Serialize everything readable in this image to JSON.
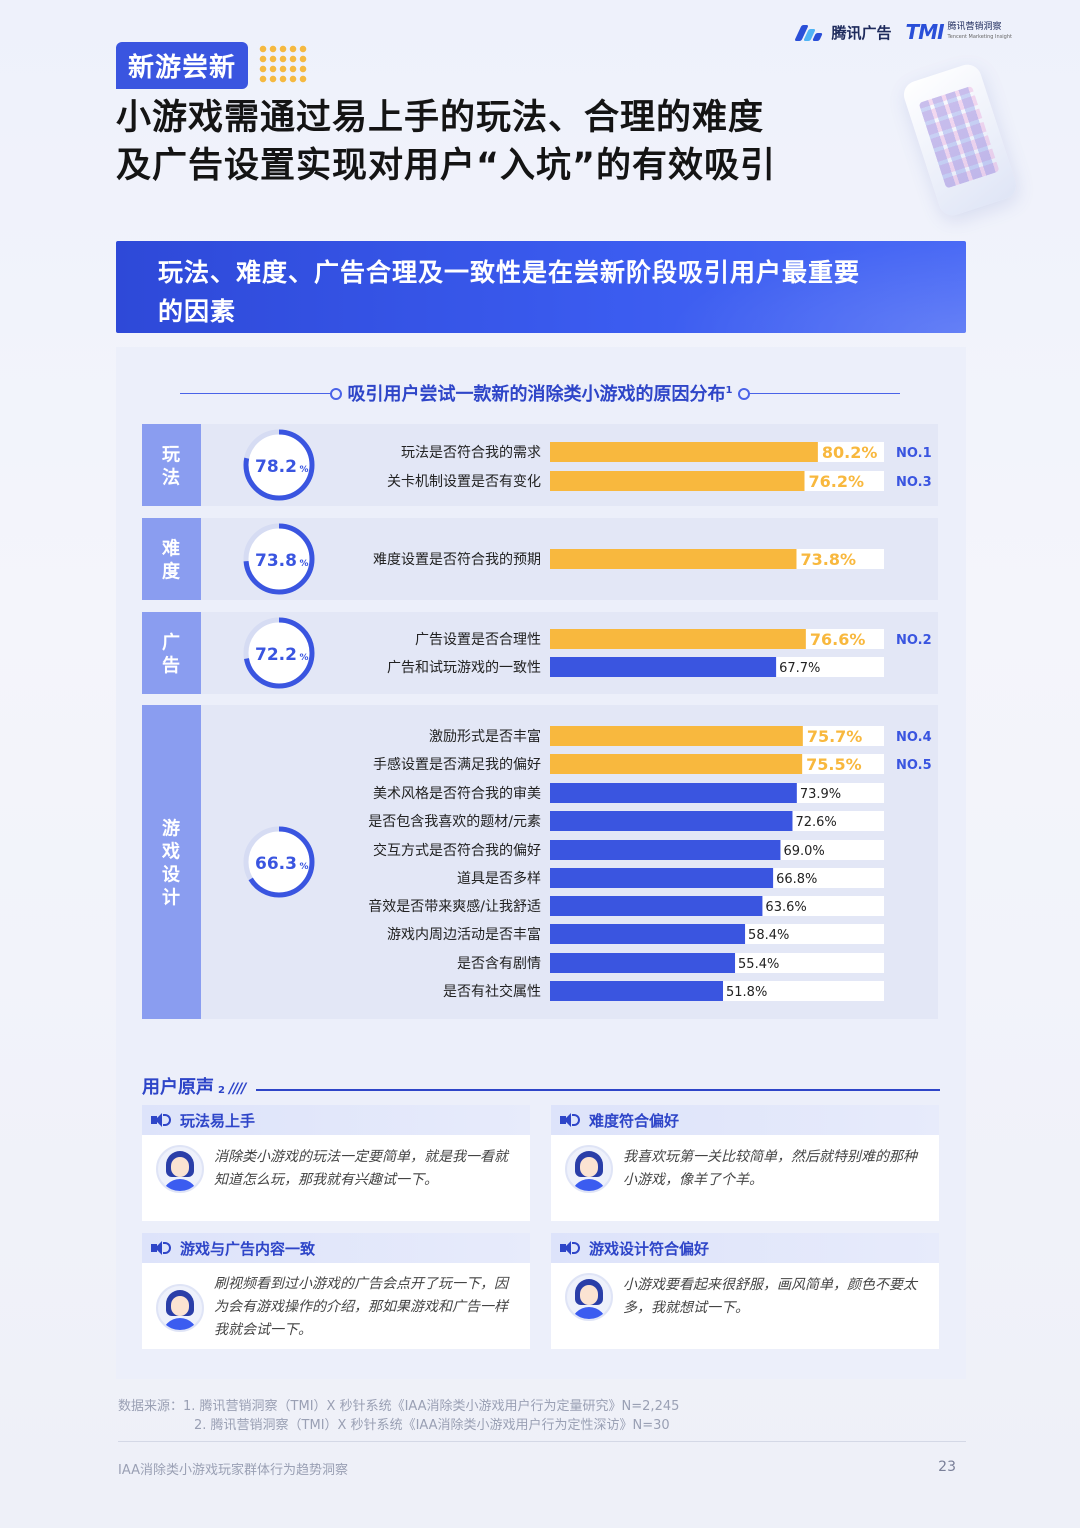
{
  "header": {
    "logo_text": "腾讯广告",
    "tmi_text": "TMI",
    "tmi_sub": "腾讯营销洞察",
    "tmi_sub_en": "Tencent Marketing Insight",
    "tag": "新游尝新",
    "title_line1": "小游戏需通过易上手的玩法、合理的难度",
    "title_line2": "及广告设置实现对用户“入坑”的有效吸引"
  },
  "banner": {
    "line1": "玩法、难度、广告合理及一致性是在尝新阶段吸引用户最重要",
    "line2": "的因素"
  },
  "chart_data": {
    "type": "bar",
    "orientation": "horizontal",
    "title": "吸引用户尝试一款新的消除类小游戏的原因分布",
    "title_sup": "1",
    "xlim": [
      0,
      100
    ],
    "unit": "%",
    "highlight_color": "#f8b83e",
    "base_color": "#3a55e0",
    "groups": [
      {
        "label": "玩法",
        "group_value": 78.2,
        "items": [
          {
            "label": "玩法是否符合我的需求",
            "value": 80.2,
            "rank": "NO.1",
            "highlight": true
          },
          {
            "label": "关卡机制设置是否有变化",
            "value": 76.2,
            "rank": "NO.3",
            "highlight": true
          }
        ]
      },
      {
        "label": "难度",
        "group_value": 73.8,
        "items": [
          {
            "label": "难度设置是否符合我的预期",
            "value": 73.8,
            "rank": "",
            "highlight": true
          }
        ]
      },
      {
        "label": "广告",
        "group_value": 72.2,
        "items": [
          {
            "label": "广告设置是否合理性",
            "value": 76.6,
            "rank": "NO.2",
            "highlight": true
          },
          {
            "label": "广告和试玩游戏的一致性",
            "value": 67.7,
            "rank": "",
            "highlight": false
          }
        ]
      },
      {
        "label": "游戏设计",
        "group_value": 66.3,
        "items": [
          {
            "label": "激励形式是否丰富",
            "value": 75.7,
            "rank": "NO.4",
            "highlight": true
          },
          {
            "label": "手感设置是否满足我的偏好",
            "value": 75.5,
            "rank": "NO.5",
            "highlight": true
          },
          {
            "label": "美术风格是否符合我的审美",
            "value": 73.9,
            "rank": "",
            "highlight": false
          },
          {
            "label": "是否包含我喜欢的题材/元素",
            "value": 72.6,
            "rank": "",
            "highlight": false
          },
          {
            "label": "交互方式是否符合我的偏好",
            "value": 69.0,
            "rank": "",
            "highlight": false
          },
          {
            "label": "道具是否多样",
            "value": 66.8,
            "rank": "",
            "highlight": false
          },
          {
            "label": "音效是否带来爽感/让我舒适",
            "value": 63.6,
            "rank": "",
            "highlight": false
          },
          {
            "label": "游戏内周边活动是否丰富",
            "value": 58.4,
            "rank": "",
            "highlight": false
          },
          {
            "label": "是否含有剧情",
            "value": 55.4,
            "rank": "",
            "highlight": false
          },
          {
            "label": "是否有社交属性",
            "value": 51.8,
            "rank": "",
            "highlight": false
          }
        ]
      }
    ]
  },
  "voices": {
    "title": "用户原声",
    "title_sup": "2",
    "slashes": "////",
    "cards": [
      {
        "head": "玩法易上手",
        "quote": "消除类小游戏的玩法一定要简单，就是我一看就知道怎么玩，那我就有兴趣试一下。"
      },
      {
        "head": "难度符合偏好",
        "quote": "我喜欢玩第一关比较简单，然后就特别难的那种小游戏，像羊了个羊。"
      },
      {
        "head": "游戏与广告内容一致",
        "quote": "刷视频看到过小游戏的广告会点开了玩一下，因为会有游戏操作的介绍，那如果游戏和广告一样我就会试一下。"
      },
      {
        "head": "游戏设计符合偏好",
        "quote": "小游戏要看起来很舒服，画风简单，颜色不要太多，我就想试一下。"
      }
    ]
  },
  "sources": {
    "row1": "数据来源：1. 腾讯营销洞察（TMI）X 秒针系统《IAA消除类小游戏用户行为定量研究》N=2,245",
    "row2": "2. 腾讯营销洞察（TMI）X 秒针系统《IAA消除类小游戏用户行为定性深访》N=30"
  },
  "footer": {
    "left": "IAA消除类小游戏玩家群体行为趋势洞察",
    "page": "23"
  }
}
